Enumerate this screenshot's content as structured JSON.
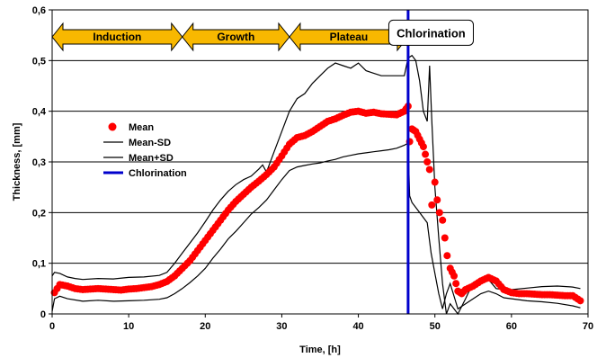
{
  "chart_data": {
    "type": "scatter",
    "xlabel": "Time, [h]",
    "ylabel": "Thickness, [mm]",
    "xlim": [
      0,
      70
    ],
    "ylim": [
      0,
      0.6
    ],
    "xticks": [
      0,
      10,
      20,
      30,
      40,
      50,
      60,
      70
    ],
    "yticks": [
      0,
      0.1,
      0.2,
      0.3,
      0.4,
      0.5,
      0.6
    ],
    "xtick_labels": [
      "0",
      "10",
      "20",
      "30",
      "40",
      "50",
      "60",
      "70"
    ],
    "ytick_labels": [
      "0",
      "0,1",
      "0,2",
      "0,3",
      "0,4",
      "0,5",
      "0,6"
    ],
    "grid": "horizontal",
    "legend_position": "left",
    "chlorination_x": 46.5,
    "phases": [
      {
        "label": "Induction",
        "x_start": 0,
        "x_end": 17
      },
      {
        "label": "Growth",
        "x_start": 17,
        "x_end": 31
      },
      {
        "label": "Plateau",
        "x_start": 31,
        "x_end": 46.5
      }
    ],
    "annotation": {
      "label": "Chlorination",
      "x": 49.5,
      "y": 0.555
    },
    "series": [
      {
        "name": "Mean",
        "kind": "markers",
        "color": "#ff0000",
        "x": [
          0.3,
          1,
          2,
          3,
          4,
          5,
          6,
          7,
          8,
          9,
          10,
          11,
          12,
          13,
          14,
          15,
          16,
          17,
          18,
          19,
          20,
          21,
          22,
          23,
          24,
          25,
          26,
          27,
          28,
          29,
          30,
          31,
          32,
          33,
          34,
          35,
          36,
          37,
          38,
          39,
          40,
          41,
          42,
          43,
          44,
          45,
          46,
          46.5,
          46.7,
          47,
          47.5,
          48,
          48.5,
          49,
          49.3,
          49.6,
          50,
          50.3,
          50.6,
          51,
          51.3,
          51.6,
          52,
          52.5,
          53,
          53.5,
          54,
          55,
          56,
          57,
          58,
          59,
          60,
          61,
          62,
          63,
          64,
          65,
          66,
          67,
          68,
          69
        ],
        "y": [
          0.042,
          0.058,
          0.055,
          0.05,
          0.048,
          0.049,
          0.05,
          0.049,
          0.048,
          0.047,
          0.049,
          0.05,
          0.052,
          0.054,
          0.058,
          0.064,
          0.075,
          0.09,
          0.105,
          0.125,
          0.145,
          0.165,
          0.185,
          0.205,
          0.222,
          0.236,
          0.25,
          0.262,
          0.275,
          0.29,
          0.312,
          0.335,
          0.348,
          0.352,
          0.36,
          0.37,
          0.38,
          0.385,
          0.392,
          0.398,
          0.4,
          0.396,
          0.398,
          0.395,
          0.394,
          0.393,
          0.4,
          0.41,
          0.34,
          0.365,
          0.36,
          0.345,
          0.33,
          0.3,
          0.285,
          0.215,
          0.26,
          0.225,
          0.2,
          0.185,
          0.15,
          0.115,
          0.09,
          0.075,
          0.045,
          0.04,
          0.048,
          0.055,
          0.065,
          0.072,
          0.065,
          0.048,
          0.042,
          0.04,
          0.04,
          0.039,
          0.038,
          0.038,
          0.037,
          0.036,
          0.036,
          0.026
        ]
      },
      {
        "name": "Mean-SD",
        "kind": "line",
        "color": "#000000",
        "x": [
          0,
          0.3,
          1,
          2,
          4,
          6,
          8,
          10,
          12,
          14,
          15,
          16,
          17,
          18,
          19,
          20,
          21,
          22,
          23,
          24,
          25,
          26,
          27,
          28,
          29,
          30,
          31,
          32,
          33,
          34,
          35,
          36,
          37,
          38,
          39,
          40,
          41,
          42,
          43,
          44,
          45,
          46,
          46.5,
          46.7,
          47,
          48,
          49,
          49.5,
          50,
          50.5,
          51,
          51.5,
          52,
          53,
          54,
          55,
          56,
          57,
          58,
          59,
          60,
          62,
          64,
          66,
          68,
          69
        ],
        "y": [
          0.005,
          0.03,
          0.035,
          0.03,
          0.025,
          0.027,
          0.025,
          0.026,
          0.027,
          0.029,
          0.032,
          0.04,
          0.05,
          0.062,
          0.075,
          0.09,
          0.11,
          0.128,
          0.148,
          0.163,
          0.18,
          0.197,
          0.21,
          0.225,
          0.245,
          0.265,
          0.283,
          0.29,
          0.293,
          0.296,
          0.298,
          0.302,
          0.305,
          0.31,
          0.313,
          0.316,
          0.318,
          0.32,
          0.322,
          0.324,
          0.327,
          0.333,
          0.337,
          0.233,
          0.22,
          0.2,
          0.18,
          0.12,
          0.08,
          0.04,
          0.01,
          0.04,
          0.06,
          0.01,
          0.02,
          0.03,
          0.04,
          0.045,
          0.04,
          0.032,
          0.03,
          0.026,
          0.024,
          0.021,
          0.016,
          0.012
        ]
      },
      {
        "name": "Mean+SD",
        "kind": "line",
        "color": "#000000",
        "x": [
          0,
          0.3,
          1,
          2,
          3,
          4,
          6,
          8,
          10,
          12,
          14,
          15,
          16,
          17,
          18,
          19,
          20,
          21,
          22,
          23,
          24,
          25,
          26,
          27,
          27.5,
          28,
          29,
          30,
          31,
          32,
          33,
          34,
          35,
          36,
          37,
          38,
          39,
          40,
          41,
          42,
          43,
          44,
          45,
          46,
          46.5,
          47,
          47.5,
          48,
          48.5,
          49,
          49.3,
          49.6,
          50,
          50.5,
          51,
          51.5,
          52,
          53,
          54,
          55,
          56,
          57,
          58,
          59,
          60,
          62,
          64,
          66,
          68,
          69
        ],
        "y": [
          0.075,
          0.082,
          0.08,
          0.073,
          0.07,
          0.068,
          0.07,
          0.069,
          0.072,
          0.073,
          0.076,
          0.082,
          0.1,
          0.12,
          0.14,
          0.16,
          0.182,
          0.205,
          0.225,
          0.242,
          0.255,
          0.265,
          0.272,
          0.286,
          0.294,
          0.28,
          0.32,
          0.36,
          0.4,
          0.425,
          0.435,
          0.455,
          0.47,
          0.485,
          0.495,
          0.49,
          0.485,
          0.495,
          0.48,
          0.475,
          0.47,
          0.47,
          0.47,
          0.47,
          0.505,
          0.51,
          0.5,
          0.46,
          0.4,
          0.38,
          0.49,
          0.38,
          0.25,
          0.15,
          0.06,
          0.0,
          0.02,
          0.0,
          0.03,
          0.062,
          0.07,
          0.068,
          0.05,
          0.048,
          0.048,
          0.051,
          0.054,
          0.055,
          0.053,
          0.05
        ]
      },
      {
        "name": "Chlorination",
        "kind": "vline",
        "color": "#0000cc"
      }
    ]
  }
}
